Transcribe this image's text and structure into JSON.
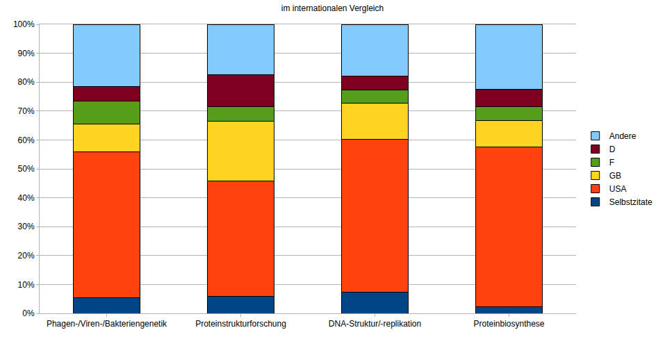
{
  "chart_data": {
    "type": "bar",
    "title": "im internationalen Vergleich",
    "stacked": true,
    "grid": true,
    "legend": "right",
    "categories": [
      "Phagen-/Viren-/Bakteriengenetik",
      "Proteinstrukturforschung",
      "DNA-Struktur/-replikation",
      "Proteinbiosynthese"
    ],
    "series": [
      {
        "name": "Selbstzitate",
        "color": "#004586",
        "values": [
          5.5,
          6,
          7.3,
          2.3
        ]
      },
      {
        "name": "USA",
        "color": "#ff420e",
        "values": [
          50.5,
          39.7,
          52.9,
          55.3
        ]
      },
      {
        "name": "GB",
        "color": "#ffd320",
        "values": [
          9.5,
          20.8,
          12.6,
          9.1
        ]
      },
      {
        "name": "F",
        "color": "#579d1c",
        "values": [
          8,
          5,
          4.4,
          4.8
        ]
      },
      {
        "name": "D",
        "color": "#7e0021",
        "values": [
          5,
          11,
          4.8,
          6
        ]
      },
      {
        "name": "Andere",
        "color": "#83caff",
        "values": [
          21.5,
          17.5,
          18,
          22.5
        ]
      }
    ],
    "ylim": [
      0,
      100
    ],
    "yticks": [
      {
        "value": 0,
        "label": "0%"
      },
      {
        "value": 10,
        "label": "10%"
      },
      {
        "value": 20,
        "label": "20%"
      },
      {
        "value": 30,
        "label": "30%"
      },
      {
        "value": 40,
        "label": "40%"
      },
      {
        "value": 50,
        "label": "50%"
      },
      {
        "value": 60,
        "label": "60%"
      },
      {
        "value": 70,
        "label": "70%"
      },
      {
        "value": 80,
        "label": "80%"
      },
      {
        "value": 90,
        "label": "90%"
      },
      {
        "value": 100,
        "label": "100%"
      }
    ]
  }
}
